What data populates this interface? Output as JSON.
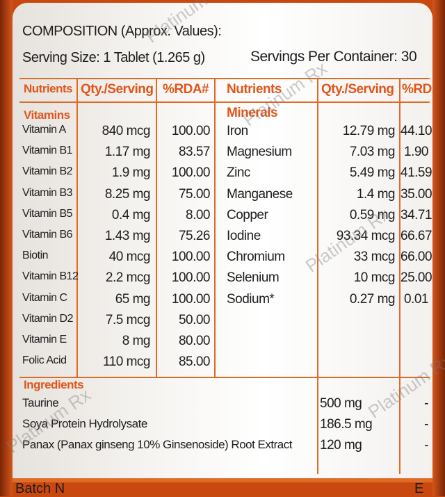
{
  "header": {
    "title": "COMPOSITION (Approx. Values):",
    "serving_size": "Serving Size: 1 Tablet (1.265 g)",
    "servings_per_container": "Servings Per Container: 30"
  },
  "table": {
    "headers": [
      "Nutrients",
      "Qty./Serving",
      "%RDA#",
      "Nutrients",
      "Qty./Serving",
      "%RDA#"
    ],
    "vitamins_label": "Vitamins",
    "minerals_label": "Minerals",
    "vitamins": [
      {
        "name": "Vitamin A",
        "qty": "840 mcg",
        "rda": "100.00"
      },
      {
        "name": "Vitamin B1",
        "qty": "1.17 mg",
        "rda": "83.57"
      },
      {
        "name": "Vitamin B2",
        "qty": "1.9 mg",
        "rda": "100.00"
      },
      {
        "name": "Vitamin B3",
        "qty": "8.25 mg",
        "rda": "75.00"
      },
      {
        "name": "Vitamin B5",
        "qty": "0.4 mg",
        "rda": "8.00"
      },
      {
        "name": "Vitamin B6",
        "qty": "1.43 mg",
        "rda": "75.26"
      },
      {
        "name": "Biotin",
        "qty": "40 mcg",
        "rda": "100.00"
      },
      {
        "name": "Vitamin B12",
        "qty": "2.2 mcg",
        "rda": "100.00"
      },
      {
        "name": "Vitamin C",
        "qty": "65 mg",
        "rda": "100.00"
      },
      {
        "name": "Vitamin D2",
        "qty": "7.5 mcg",
        "rda": "50.00"
      },
      {
        "name": "Vitamin E",
        "qty": "8 mg",
        "rda": "80.00"
      },
      {
        "name": "Folic Acid",
        "qty": "110 mcg",
        "rda": "85.00"
      }
    ],
    "minerals": [
      {
        "name": "Iron",
        "qty": "12.79 mg",
        "rda": "44.10"
      },
      {
        "name": "Magnesium",
        "qty": "7.03 mg",
        "rda": "1.90"
      },
      {
        "name": "Zinc",
        "qty": "5.49 mg",
        "rda": "41.59"
      },
      {
        "name": "Manganese",
        "qty": "1.4 mg",
        "rda": "35.00"
      },
      {
        "name": "Copper",
        "qty": "0.59 mg",
        "rda": "34.71"
      },
      {
        "name": "Iodine",
        "qty": "93.34 mcg",
        "rda": "66.67"
      },
      {
        "name": "Chromium",
        "qty": "33 mcg",
        "rda": "66.00"
      },
      {
        "name": "Selenium",
        "qty": "10 mcg",
        "rda": "25.00"
      },
      {
        "name": "Sodium*",
        "qty": "0.27 mg",
        "rda": "0.01"
      }
    ]
  },
  "ingredients": {
    "label": "Ingredients",
    "items": [
      {
        "name": "Taurine",
        "qty": "500 mg",
        "rda": "-"
      },
      {
        "name": "Soya Protein Hydrolysate",
        "qty": "186.5 mg",
        "rda": "-"
      },
      {
        "name": "Panax (Panax ginseng 10% Ginsenoside) Root Extract",
        "qty": "120 mg",
        "rda": "-"
      }
    ]
  },
  "footer": {
    "batch": "Batch N",
    "corner_letter": "E"
  },
  "watermark": {
    "text": "Platinum Rx"
  },
  "colors": {
    "accent": "#e0561b",
    "bottle": "#c9480f",
    "text": "#1d1d1d"
  }
}
